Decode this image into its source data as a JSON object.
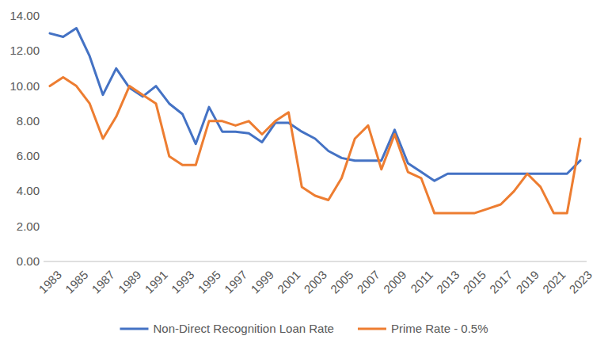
{
  "chart_data": {
    "type": "line",
    "categories": [
      "1983",
      null,
      "1985",
      null,
      "1987",
      null,
      "1989",
      null,
      "1991",
      null,
      "1993",
      null,
      "1995",
      null,
      "1997",
      null,
      "1999",
      null,
      "2001",
      null,
      "2003",
      null,
      "2005",
      null,
      "2007",
      null,
      "2009",
      null,
      "2011",
      null,
      "2013",
      null,
      "2015",
      null,
      "2017",
      null,
      "2019",
      null,
      "2021",
      null,
      "2023"
    ],
    "series": [
      {
        "name": "Non-Direct Recognition Loan Rate",
        "color": "#4472c4",
        "values": [
          13.0,
          12.8,
          13.3,
          11.7,
          9.5,
          11.0,
          9.9,
          9.4,
          10.0,
          9.0,
          8.4,
          6.7,
          8.8,
          7.4,
          7.4,
          7.3,
          6.8,
          7.9,
          7.9,
          7.4,
          7.0,
          6.3,
          5.9,
          5.75,
          5.75,
          5.75,
          7.5,
          5.6,
          5.1,
          4.6,
          5.0,
          5.0,
          5.0,
          5.0,
          5.0,
          5.0,
          5.0,
          5.0,
          5.0,
          5.0,
          5.75
        ]
      },
      {
        "name": "Prime Rate - 0.5%",
        "color": "#ed7d31",
        "values": [
          10.0,
          10.5,
          10.0,
          9.0,
          7.0,
          8.25,
          10.0,
          9.5,
          9.0,
          6.0,
          5.5,
          5.5,
          8.0,
          8.0,
          7.75,
          8.0,
          7.25,
          8.0,
          8.5,
          4.25,
          3.75,
          3.5,
          4.75,
          7.0,
          7.75,
          5.25,
          7.25,
          5.1,
          4.75,
          2.75,
          2.75,
          2.75,
          2.75,
          3.0,
          3.25,
          4.0,
          5.0,
          4.25,
          2.75,
          2.75,
          7.0
        ]
      }
    ],
    "ylim": [
      0,
      14
    ],
    "yticks": [
      {
        "value": 0,
        "label": "0.00"
      },
      {
        "value": 2,
        "label": "2.00"
      },
      {
        "value": 4,
        "label": "4.00"
      },
      {
        "value": 6,
        "label": "6.00"
      },
      {
        "value": 8,
        "label": "8.00"
      },
      {
        "value": 10,
        "label": "10.00"
      },
      {
        "value": 12,
        "label": "12.00"
      },
      {
        "value": 14,
        "label": "14.00"
      }
    ],
    "grid": false,
    "legend": "bottom"
  }
}
